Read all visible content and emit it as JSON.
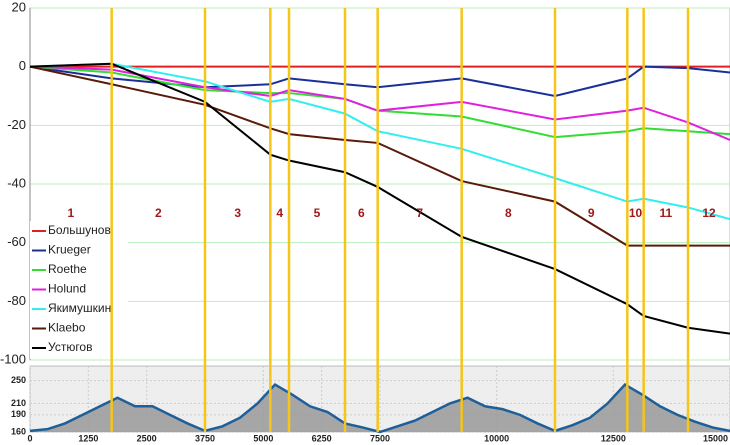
{
  "chart_data": [
    {
      "type": "line",
      "x": [
        0,
        1750,
        3750,
        5150,
        5550,
        6750,
        7450,
        9250,
        11250,
        12800,
        13150,
        14100,
        15000
      ],
      "xlim": [
        0,
        15000
      ],
      "ylim": [
        -100,
        20
      ],
      "yticks": [
        20,
        0,
        -20,
        -40,
        -60,
        -80,
        -100
      ],
      "grid": true,
      "checkpoints": [
        1750,
        3750,
        5150,
        5550,
        6750,
        7450,
        9250,
        11250,
        12800,
        13150,
        14100
      ],
      "segment_labels": [
        "1",
        "2",
        "3",
        "4",
        "5",
        "6",
        "7",
        "8",
        "9",
        "10",
        "11",
        "12"
      ],
      "legend": "lower left",
      "series": [
        {
          "name": "Большунов",
          "color": "#e02020",
          "values": [
            0,
            0,
            0,
            0,
            0,
            0,
            0,
            0,
            0,
            0,
            0,
            0,
            0
          ]
        },
        {
          "name": "Krueger",
          "color": "#1a2f9a",
          "values": [
            0,
            -4,
            -7,
            -6,
            -4,
            -6,
            -7,
            -4,
            -10,
            -4,
            0,
            -0.5,
            -2
          ]
        },
        {
          "name": "Roethe",
          "color": "#33dd33",
          "values": [
            0,
            -2,
            -8,
            -9,
            -9,
            -11,
            -15,
            -17,
            -24,
            -22,
            -21,
            -22,
            -23
          ]
        },
        {
          "name": "Holund",
          "color": "#e020e0",
          "values": [
            0,
            -1,
            -7,
            -10,
            -8,
            -11,
            -15,
            -12,
            -18,
            -15,
            -14,
            -19,
            -25
          ]
        },
        {
          "name": "Якимушкин",
          "color": "#33eeee",
          "values": [
            0,
            1,
            -5,
            -12,
            -11,
            -16,
            -22,
            -28,
            -38,
            -46,
            -45,
            -48,
            -52
          ]
        },
        {
          "name": "Klaebo",
          "color": "#5a1a0a",
          "values": [
            0,
            -6,
            -13,
            -21,
            -23,
            -25,
            -26,
            -39,
            -46,
            -61,
            -61,
            -61,
            -61
          ]
        },
        {
          "name": "Устюгов",
          "color": "#000000",
          "values": [
            0,
            1,
            -12,
            -30,
            -32,
            -36,
            -41,
            -58,
            -69,
            -81,
            -85,
            -89,
            -91
          ]
        }
      ]
    },
    {
      "type": "area",
      "x": [
        0,
        375,
        750,
        1125,
        1500,
        1875,
        2250,
        2625,
        3000,
        3375,
        3750,
        4125,
        4500,
        4875,
        5250,
        5625,
        6000,
        6375,
        6750,
        7125,
        7500,
        7875,
        8250,
        8625,
        9000,
        9375,
        9750,
        10125,
        10500,
        10875,
        11250,
        11625,
        12000,
        12375,
        12750,
        13125,
        13500,
        13875,
        14250,
        14625,
        15000
      ],
      "values": [
        162,
        165,
        175,
        190,
        205,
        220,
        205,
        205,
        190,
        175,
        162,
        170,
        185,
        210,
        243,
        225,
        205,
        195,
        175,
        168,
        160,
        170,
        180,
        195,
        210,
        220,
        205,
        200,
        190,
        175,
        162,
        172,
        185,
        210,
        243,
        225,
        205,
        190,
        178,
        168,
        162
      ],
      "color": "#999999",
      "line_color": "#1f5f99",
      "xlim": [
        0,
        15000
      ],
      "xticks": [
        0,
        1250,
        2500,
        3750,
        5000,
        6250,
        7500,
        10000,
        12500,
        15000
      ],
      "ylim": [
        160,
        265
      ],
      "yticks": [
        250,
        210,
        190,
        160
      ]
    }
  ]
}
